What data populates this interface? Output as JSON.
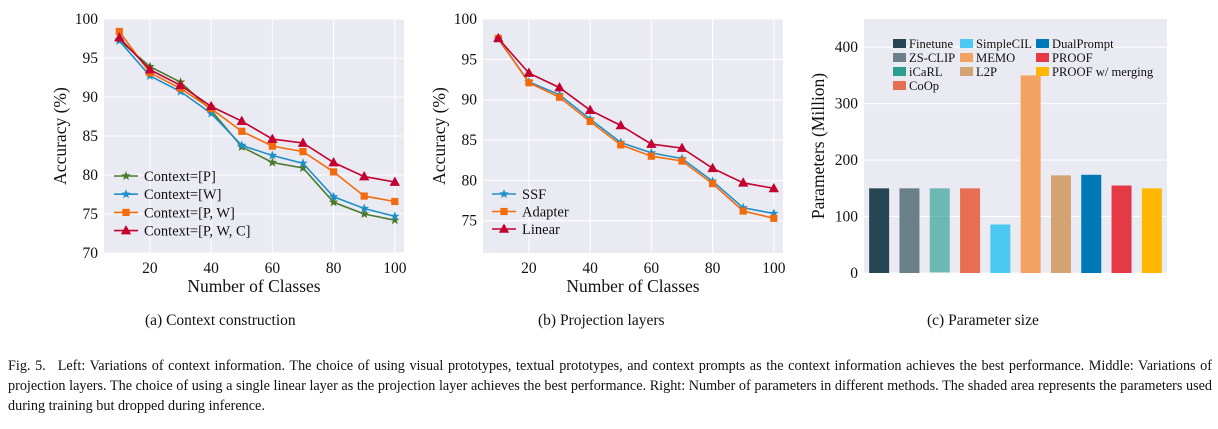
{
  "chart_data": [
    {
      "type": "line",
      "xlabel": "Number of Classes",
      "ylabel": "Accuracy (%)",
      "xlim": [
        5,
        103
      ],
      "ylim": [
        70,
        100
      ],
      "xticks": [
        20,
        40,
        60,
        80,
        100
      ],
      "yticks": [
        70,
        75,
        80,
        85,
        90,
        95,
        100
      ],
      "legend_position": "lower-left",
      "x": [
        10,
        20,
        30,
        40,
        50,
        60,
        70,
        80,
        90,
        100
      ],
      "series": [
        {
          "name": "Context=[P]",
          "color": "#4a7a2c",
          "marker": "star",
          "values": [
            97.3,
            93.9,
            91.9,
            88.3,
            83.6,
            81.6,
            80.9,
            76.5,
            75.0,
            74.2
          ]
        },
        {
          "name": "Context=[W]",
          "color": "#1f8fc9",
          "marker": "star",
          "values": [
            97.2,
            92.7,
            90.7,
            87.9,
            83.8,
            82.5,
            81.5,
            77.2,
            75.7,
            74.7
          ]
        },
        {
          "name": "Context=[P, W]",
          "color": "#f26c0d",
          "marker": "square",
          "values": [
            98.4,
            93.1,
            91.1,
            88.5,
            85.6,
            83.7,
            83.0,
            80.4,
            77.3,
            76.6
          ]
        },
        {
          "name": "Context=[P, W, C]",
          "color": "#c3002f",
          "marker": "triangle",
          "values": [
            97.6,
            93.5,
            91.5,
            88.8,
            86.9,
            84.6,
            84.1,
            81.6,
            79.8,
            79.1
          ]
        }
      ],
      "subcaption": "(a)  Context construction"
    },
    {
      "type": "line",
      "xlabel": "Number of Classes",
      "ylabel": "Accuracy (%)",
      "xlim": [
        5,
        103
      ],
      "ylim": [
        71,
        100
      ],
      "xticks": [
        20,
        40,
        60,
        80,
        100
      ],
      "yticks": [
        75,
        80,
        85,
        90,
        95,
        100
      ],
      "legend_position": "lower-left",
      "x": [
        10,
        20,
        30,
        40,
        50,
        60,
        70,
        80,
        90,
        100
      ],
      "series": [
        {
          "name": "SSF",
          "color": "#1f8fc9",
          "marker": "star",
          "values": [
            97.5,
            92.2,
            90.6,
            87.6,
            84.7,
            83.4,
            82.7,
            79.9,
            76.6,
            75.9
          ]
        },
        {
          "name": "Adapter",
          "color": "#f26c0d",
          "marker": "square",
          "values": [
            97.6,
            92.1,
            90.3,
            87.3,
            84.4,
            83.0,
            82.4,
            79.6,
            76.2,
            75.3
          ]
        },
        {
          "name": "Linear",
          "color": "#c3002f",
          "marker": "triangle",
          "values": [
            97.6,
            93.3,
            91.5,
            88.7,
            86.8,
            84.5,
            84.0,
            81.5,
            79.7,
            79.0
          ]
        }
      ],
      "subcaption": "(b)  Projection layers"
    },
    {
      "type": "bar",
      "ylabel": "Parameters (Million)",
      "ylim": [
        0,
        450
      ],
      "yticks": [
        0,
        100,
        200,
        300,
        400
      ],
      "legend_position": "top",
      "categories": [
        "Finetune",
        "ZS-CLIP",
        "iCaRL",
        "CoOp",
        "SimpleCIL",
        "MEMO",
        "L2P",
        "DualPrompt",
        "PROOF",
        "PROOF w/ merging"
      ],
      "values": [
        150,
        150,
        150,
        150,
        86,
        350,
        173,
        174,
        155,
        150
      ],
      "dropped_at_inference": [
        0,
        0,
        150,
        0,
        0,
        0,
        0,
        0,
        0,
        0
      ],
      "colors": [
        "#264653",
        "#6b7f88",
        "#2a9d8f",
        "#e76f51",
        "#4cc9f0",
        "#f4a261",
        "#d4a373",
        "#0077b6",
        "#e63946",
        "#ffb703"
      ],
      "legend_rows": [
        [
          "Finetune",
          "SimpleCIL",
          "DualPrompt"
        ],
        [
          "ZS-CLIP",
          "MEMO",
          "PROOF"
        ],
        [
          "iCaRL",
          "L2P",
          "PROOF w/ merging"
        ],
        [
          "CoOp"
        ]
      ],
      "subcaption": "(c)  Parameter size"
    }
  ],
  "caption": {
    "figure_label": "Fig. 5.",
    "text": "Left: Variations of context information. The choice of using visual prototypes, textual prototypes, and context prompts as the context information achieves the best performance. Middle: Variations of projection layers. The choice of using a single linear layer as the projection layer achieves the best performance. Right: Number of parameters in different methods. The shaded area represents the parameters used during training but dropped during inference."
  }
}
